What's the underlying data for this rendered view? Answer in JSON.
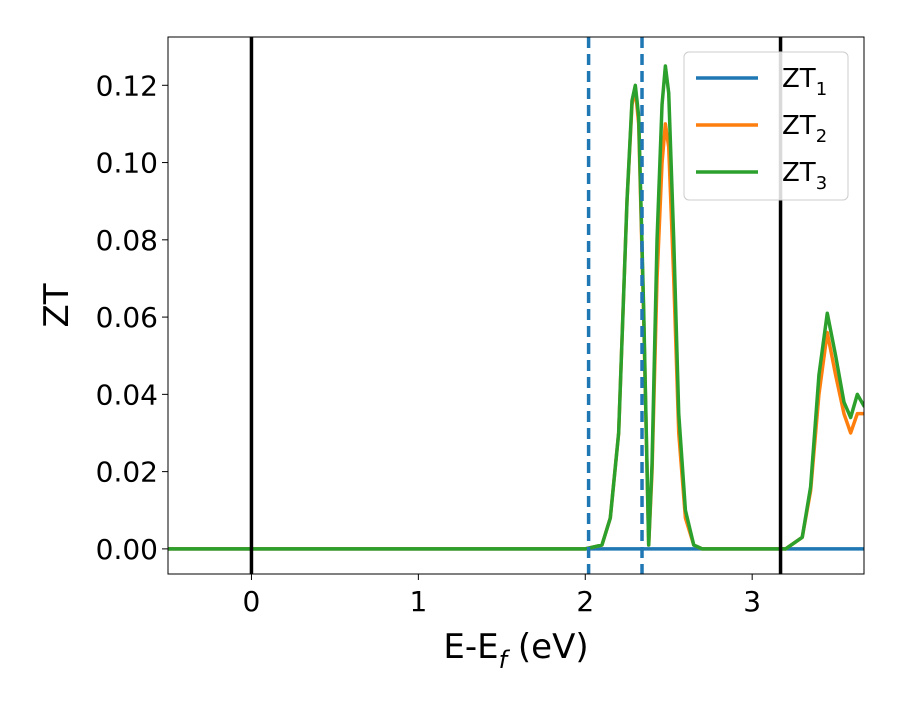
{
  "chart_data": {
    "type": "line",
    "xlabel": {
      "main": "E-E",
      "sub": "f",
      "suffix": " (eV)"
    },
    "ylabel": "ZT",
    "xlim": [
      -0.5,
      3.67
    ],
    "ylim": [
      -0.0065,
      0.1325
    ],
    "xticks": [
      0,
      1,
      2,
      3
    ],
    "xtick_labels": [
      "0",
      "1",
      "2",
      "3"
    ],
    "yticks": [
      0.0,
      0.02,
      0.04,
      0.06,
      0.08,
      0.1,
      0.12
    ],
    "ytick_labels": [
      "0.00",
      "0.02",
      "0.04",
      "0.06",
      "0.08",
      "0.10",
      "0.12"
    ],
    "grid": false,
    "legend_position": "top-right",
    "vertical_lines": [
      {
        "x": 0.0,
        "style": "solid",
        "color": "#000000"
      },
      {
        "x": 3.17,
        "style": "solid",
        "color": "#000000"
      },
      {
        "x": 2.02,
        "style": "dashed",
        "color": "#1f77b4"
      },
      {
        "x": 2.34,
        "style": "dashed",
        "color": "#1f77b4"
      }
    ],
    "series": [
      {
        "name": "ZT",
        "name_sub": "1",
        "color": "#1f77b4",
        "x": [
          -0.5,
          0.0,
          1.0,
          2.0,
          3.0,
          3.67
        ],
        "y": [
          0,
          0,
          0,
          0,
          0,
          0
        ]
      },
      {
        "name": "ZT",
        "name_sub": "2",
        "color": "#ff7f0e",
        "x": [
          -0.5,
          2.0,
          2.1,
          2.15,
          2.2,
          2.25,
          2.28,
          2.3,
          2.32,
          2.35,
          2.38,
          2.4,
          2.43,
          2.46,
          2.48,
          2.5,
          2.53,
          2.56,
          2.6,
          2.65,
          2.7,
          3.0,
          3.2,
          3.3,
          3.35,
          3.4,
          3.45,
          3.5,
          3.55,
          3.59,
          3.63,
          3.67
        ],
        "y": [
          0,
          0,
          0.001,
          0.008,
          0.03,
          0.09,
          0.115,
          0.119,
          0.11,
          0.06,
          0.001,
          0.02,
          0.07,
          0.1,
          0.11,
          0.104,
          0.07,
          0.03,
          0.008,
          0.001,
          0,
          0,
          0,
          0.003,
          0.015,
          0.04,
          0.056,
          0.045,
          0.035,
          0.03,
          0.035,
          0.035
        ]
      },
      {
        "name": "ZT",
        "name_sub": "3",
        "color": "#2ca02c",
        "x": [
          -0.5,
          2.0,
          2.1,
          2.15,
          2.2,
          2.25,
          2.28,
          2.3,
          2.32,
          2.35,
          2.38,
          2.4,
          2.43,
          2.46,
          2.48,
          2.5,
          2.53,
          2.56,
          2.6,
          2.65,
          2.7,
          3.0,
          3.2,
          3.3,
          3.35,
          3.4,
          3.45,
          3.5,
          3.55,
          3.59,
          3.63,
          3.67
        ],
        "y": [
          0,
          0,
          0.001,
          0.008,
          0.03,
          0.09,
          0.116,
          0.12,
          0.112,
          0.062,
          0.001,
          0.022,
          0.08,
          0.115,
          0.125,
          0.118,
          0.08,
          0.035,
          0.01,
          0.001,
          0,
          0,
          0,
          0.003,
          0.016,
          0.045,
          0.061,
          0.05,
          0.038,
          0.034,
          0.04,
          0.037
        ]
      }
    ]
  }
}
